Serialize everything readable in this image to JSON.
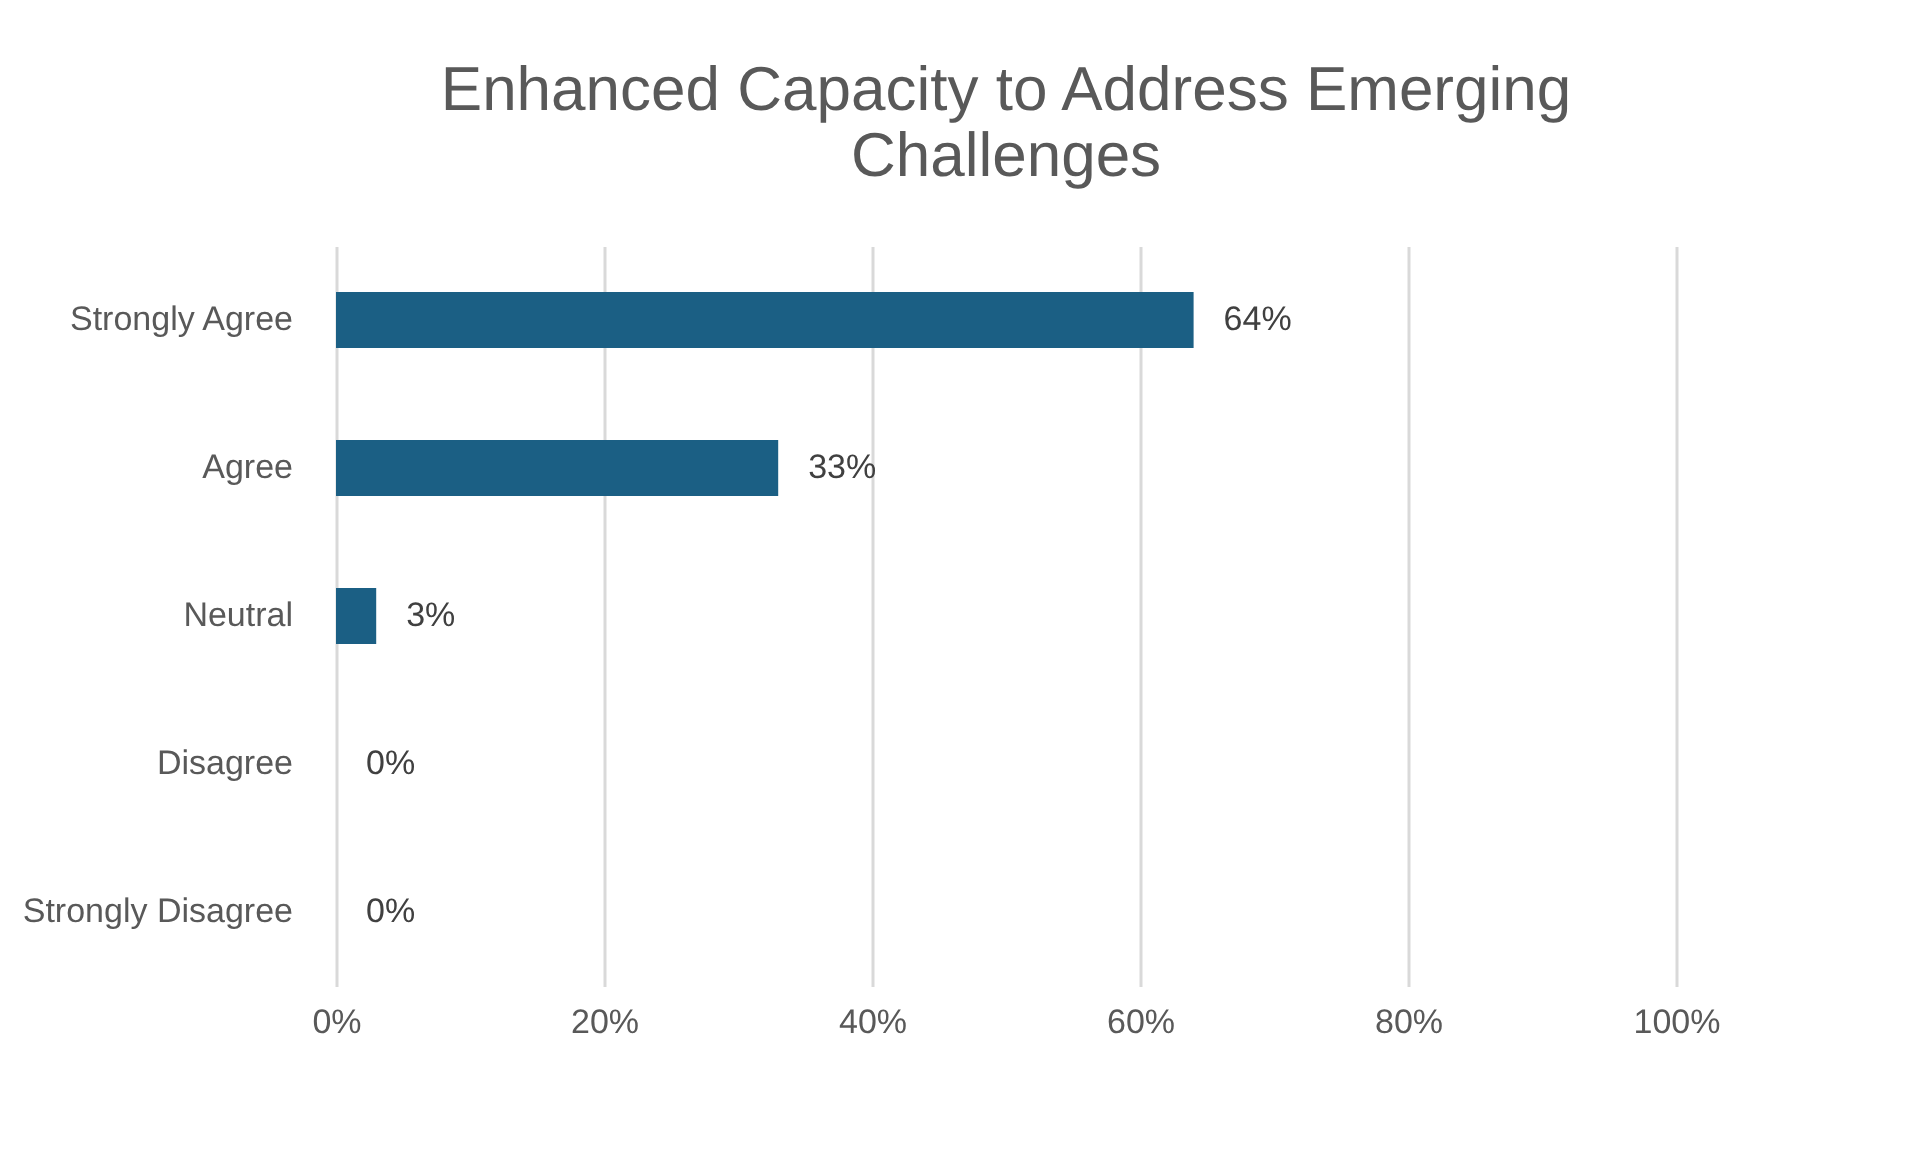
{
  "chart_data": {
    "type": "bar",
    "orientation": "horizontal",
    "title": "Enhanced Capacity to Address Emerging Challenges",
    "categories": [
      "Strongly Agree",
      "Agree",
      "Neutral",
      "Disagree",
      "Strongly Disagree"
    ],
    "values": [
      64,
      33,
      3,
      0,
      0
    ],
    "value_labels": [
      "64%",
      "33%",
      "3%",
      "0%",
      "0%"
    ],
    "color": "#1b5f84",
    "xlim": [
      0,
      100
    ],
    "xticks": [
      {
        "value": 0,
        "label": "0%"
      },
      {
        "value": 20,
        "label": "20%"
      },
      {
        "value": 40,
        "label": "40%"
      },
      {
        "value": 60,
        "label": "60%"
      },
      {
        "value": 80,
        "label": "80%"
      },
      {
        "value": 100,
        "label": "100%"
      }
    ],
    "grid": "x"
  }
}
